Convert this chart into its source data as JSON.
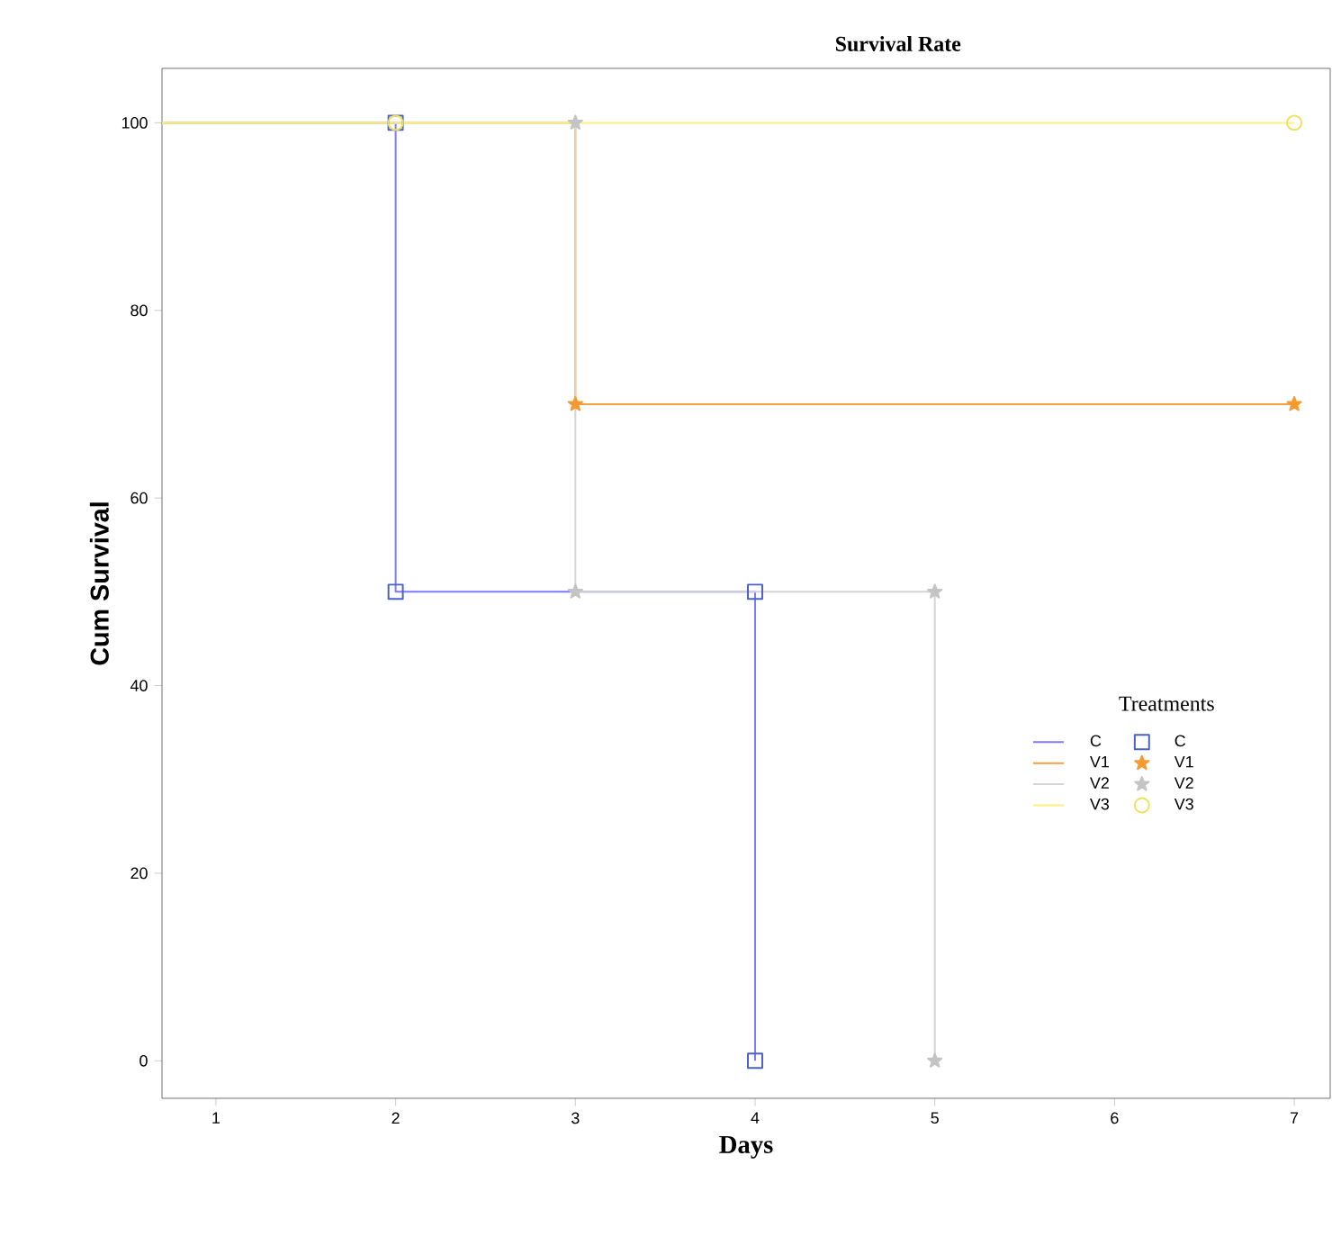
{
  "chart_data": {
    "type": "step",
    "title": "Survival Rate",
    "xlabel": "Days",
    "ylabel": "Cum Survival",
    "legend_title": "Treatments",
    "legend": "bottom right",
    "grid": false,
    "xlim": [
      0.7,
      7.2
    ],
    "xticks": [
      1,
      2,
      3,
      4,
      5,
      6,
      7
    ],
    "ylim": [
      -4,
      105.8
    ],
    "yticks": [
      0,
      20,
      40,
      60,
      80,
      100
    ],
    "series": [
      {
        "name": "C",
        "type": "step",
        "color": "#7b7bff",
        "x": [
          0.7,
          2,
          4
        ],
        "values": [
          100,
          50,
          0
        ],
        "marker": "none"
      },
      {
        "name": "C",
        "type": "scatter",
        "color": "#4a62c4",
        "x": [
          2,
          2,
          4,
          4
        ],
        "values": [
          100,
          50,
          50,
          0
        ],
        "marker": "square"
      },
      {
        "name": "V1",
        "type": "step",
        "color": "#f5a040",
        "x": [
          0.7,
          3,
          7
        ],
        "values": [
          100,
          70,
          70
        ],
        "marker": "none"
      },
      {
        "name": "V1",
        "type": "scatter",
        "color": "#f59a30",
        "x": [
          3,
          7
        ],
        "values": [
          70,
          70
        ],
        "marker": "star"
      },
      {
        "name": "V2",
        "type": "step",
        "color": "#d4d4d4",
        "x": [
          0.7,
          3,
          5
        ],
        "values": [
          100,
          50,
          0
        ],
        "marker": "none"
      },
      {
        "name": "V2",
        "type": "scatter",
        "color": "#c4c4c4",
        "x": [
          3,
          3,
          5,
          5
        ],
        "values": [
          100,
          50,
          50,
          0
        ],
        "marker": "star"
      },
      {
        "name": "V3",
        "type": "step",
        "color": "#fff080",
        "x": [
          0.7,
          7
        ],
        "values": [
          100,
          100
        ],
        "marker": "none"
      },
      {
        "name": "V3",
        "type": "scatter",
        "color": "#f0e060",
        "x": [
          2,
          7
        ],
        "values": [
          100,
          100
        ],
        "marker": "circle"
      }
    ]
  }
}
